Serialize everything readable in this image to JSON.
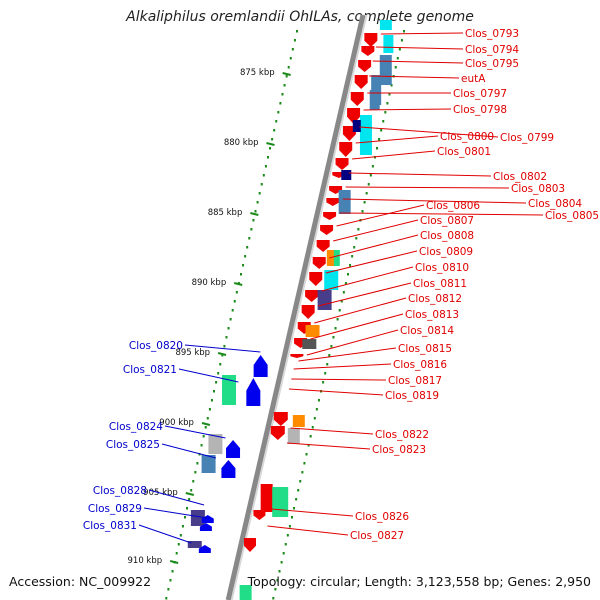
{
  "title": "Alkaliphilus oremlandii OhILAs, complete genome",
  "accession": "Accession: NC_009922",
  "topology": "Topology: circular; Length: 3,123,558 bp; Genes: 2,950",
  "ticks": [
    "875 kbp",
    "880 kbp",
    "885 kbp",
    "890 kbp",
    "895 kbp",
    "900 kbp",
    "905 kbp",
    "910 kbp"
  ],
  "genes_right": [
    {
      "label": "Clos_0793",
      "color": "#e00000"
    },
    {
      "label": "Clos_0794",
      "color": "#e00000"
    },
    {
      "label": "Clos_0795",
      "color": "#e00000"
    },
    {
      "label": "eutA",
      "color": "#e00000"
    },
    {
      "label": "Clos_0797",
      "color": "#e00000"
    },
    {
      "label": "Clos_0798",
      "color": "#e00000"
    },
    {
      "label": "Clos_0799",
      "color": "#e00000"
    },
    {
      "label": "Clos_0800",
      "color": "#e00000"
    },
    {
      "label": "Clos_0801",
      "color": "#e00000"
    },
    {
      "label": "Clos_0802",
      "color": "#e00000"
    },
    {
      "label": "Clos_0803",
      "color": "#e00000"
    },
    {
      "label": "Clos_0804",
      "color": "#e00000"
    },
    {
      "label": "Clos_0805",
      "color": "#e00000"
    },
    {
      "label": "Clos_0806",
      "color": "#e00000"
    },
    {
      "label": "Clos_0807",
      "color": "#e00000"
    },
    {
      "label": "Clos_0808",
      "color": "#e00000"
    },
    {
      "label": "Clos_0809",
      "color": "#e00000"
    },
    {
      "label": "Clos_0810",
      "color": "#e00000"
    },
    {
      "label": "Clos_0811",
      "color": "#e00000"
    },
    {
      "label": "Clos_0812",
      "color": "#e00000"
    },
    {
      "label": "Clos_0813",
      "color": "#e00000"
    },
    {
      "label": "Clos_0814",
      "color": "#e00000"
    },
    {
      "label": "Clos_0815",
      "color": "#e00000"
    },
    {
      "label": "Clos_0816",
      "color": "#e00000"
    },
    {
      "label": "Clos_0817",
      "color": "#e00000"
    },
    {
      "label": "Clos_0819",
      "color": "#e00000"
    },
    {
      "label": "Clos_0822",
      "color": "#e00000"
    },
    {
      "label": "Clos_0823",
      "color": "#e00000"
    },
    {
      "label": "Clos_0826",
      "color": "#e00000"
    },
    {
      "label": "Clos_0827",
      "color": "#e00000"
    }
  ],
  "genes_left": [
    {
      "label": "Clos_0820",
      "color": "#0000cc"
    },
    {
      "label": "Clos_0821",
      "color": "#0000cc"
    },
    {
      "label": "Clos_0824",
      "color": "#0000cc"
    },
    {
      "label": "Clos_0825",
      "color": "#0000cc"
    },
    {
      "label": "Clos_0828",
      "color": "#0000cc"
    },
    {
      "label": "Clos_0829",
      "color": "#0000cc"
    },
    {
      "label": "Clos_0831",
      "color": "#0000cc"
    }
  ],
  "colors": {
    "forward_gene": "#ee0000",
    "reverse_gene": "#0000ee",
    "backbone": "#888888",
    "tick": "#1a8a1a",
    "cyan_feature": "#00e5ee",
    "steelblue_feature": "#4682b4",
    "navy_feature": "#000080",
    "orange_feature": "#ff8c00",
    "green_feature": "#22dd88",
    "slate_feature": "#483d8b",
    "grey_feature": "#b4b4b4"
  }
}
